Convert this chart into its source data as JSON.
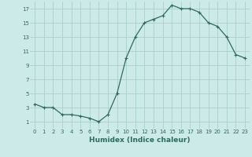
{
  "x": [
    0,
    1,
    2,
    3,
    4,
    5,
    6,
    7,
    8,
    9,
    10,
    11,
    12,
    13,
    14,
    15,
    16,
    17,
    18,
    19,
    20,
    21,
    22,
    23
  ],
  "y": [
    3.5,
    3.0,
    3.0,
    2.0,
    2.0,
    1.8,
    1.5,
    1.0,
    2.0,
    5.0,
    10.0,
    13.0,
    15.0,
    15.5,
    16.0,
    17.5,
    17.0,
    17.0,
    16.5,
    15.0,
    14.5,
    13.0,
    10.5,
    10.0
  ],
  "line_color": "#2e6b5e",
  "marker": "+",
  "marker_size": 3,
  "marker_lw": 0.8,
  "line_width": 0.9,
  "bg_color": "#cceae7",
  "grid_color": "#aacfcc",
  "xlabel": "Humidex (Indice chaleur)",
  "xlim": [
    -0.5,
    23.5
  ],
  "ylim": [
    0,
    18
  ],
  "yticks": [
    1,
    3,
    5,
    7,
    9,
    11,
    13,
    15,
    17
  ],
  "xticks": [
    0,
    1,
    2,
    3,
    4,
    5,
    6,
    7,
    8,
    9,
    10,
    11,
    12,
    13,
    14,
    15,
    16,
    17,
    18,
    19,
    20,
    21,
    22,
    23
  ],
  "tick_fontsize": 5.0,
  "xlabel_fontsize": 6.5,
  "label_color": "#2e6b5e"
}
